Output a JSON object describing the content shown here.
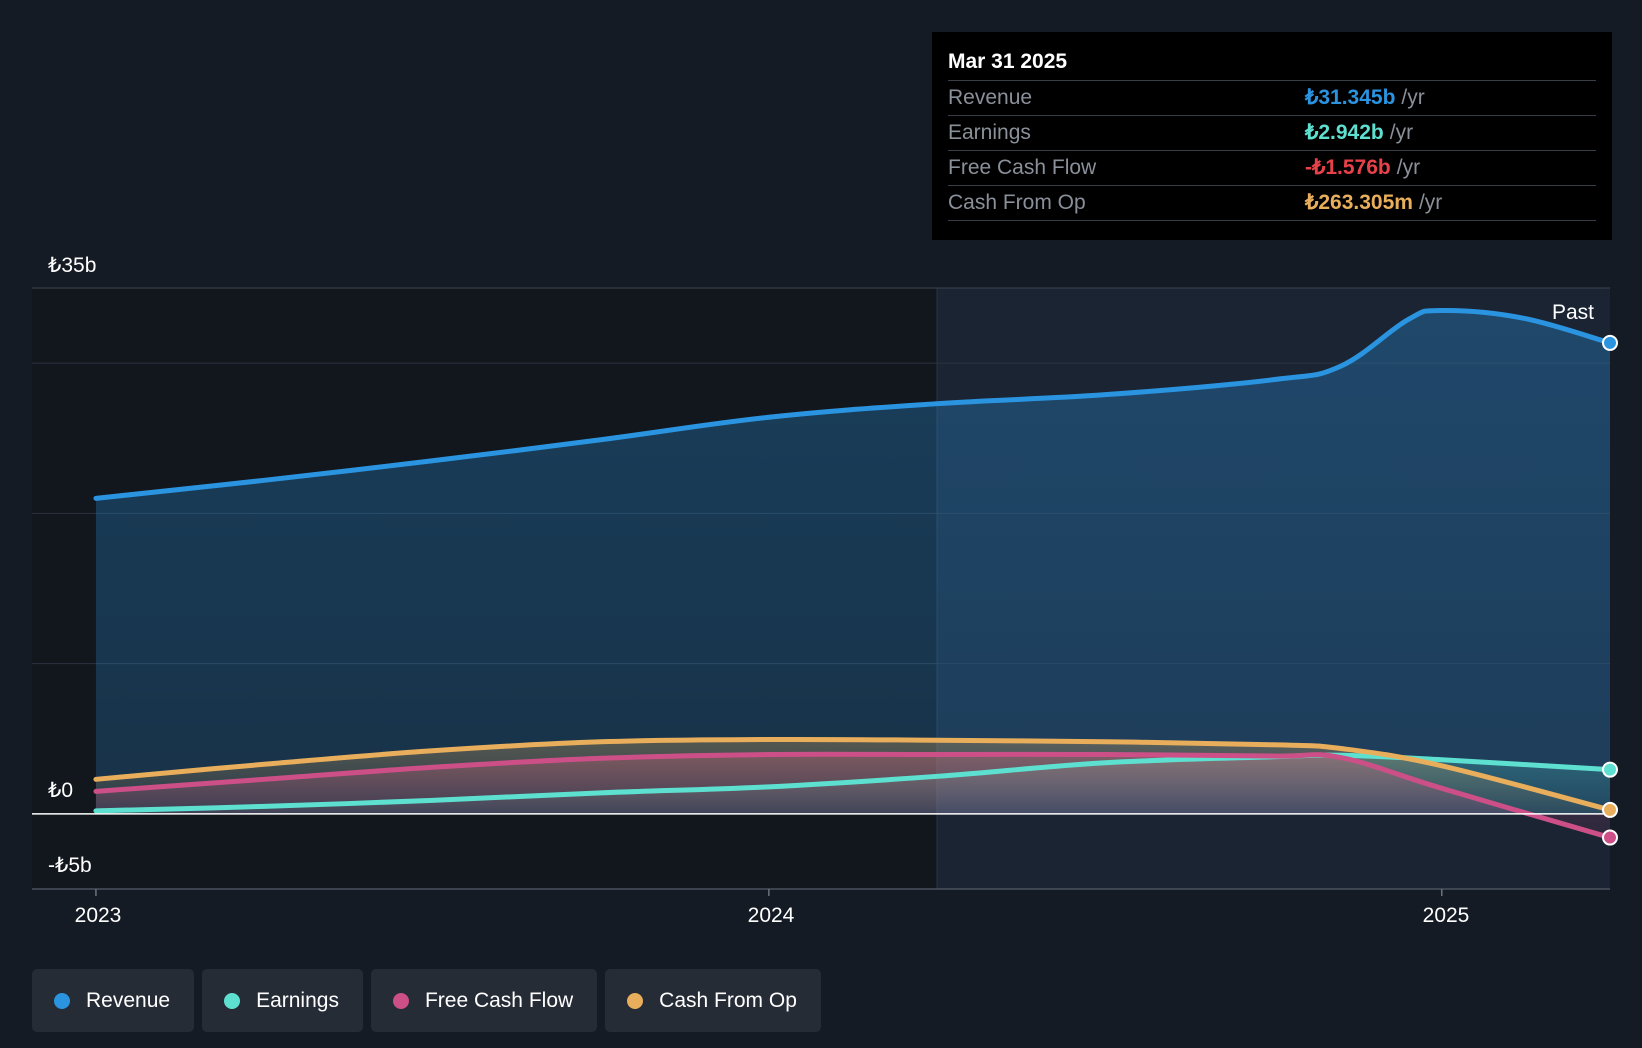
{
  "chart_data": {
    "type": "line",
    "y_tick_labels": [
      "₺35b",
      "₺0",
      "-₺5b"
    ],
    "ylim": [
      -5,
      35
    ],
    "x_tick_labels": [
      "2023",
      "2024",
      "2025"
    ],
    "x_ticks": [
      2023.0,
      2024.0,
      2025.0
    ],
    "xlim": [
      2022.905,
      2025.25
    ],
    "past_label": "Past",
    "past_start": 2024.25,
    "grid": true,
    "area_fill": true,
    "series": [
      {
        "name": "Revenue",
        "color": "#2a94e0",
        "end_marker": true,
        "points": [
          [
            2023.0,
            21.0
          ],
          [
            2023.25,
            22.2
          ],
          [
            2023.5,
            23.5
          ],
          [
            2023.75,
            24.9
          ],
          [
            2024.0,
            26.4
          ],
          [
            2024.25,
            27.3
          ],
          [
            2024.5,
            27.9
          ],
          [
            2024.75,
            28.9
          ],
          [
            2024.85,
            29.8
          ],
          [
            2024.95,
            32.9
          ],
          [
            2025.0,
            33.5
          ],
          [
            2025.12,
            33.0
          ],
          [
            2025.25,
            31.345
          ]
        ]
      },
      {
        "name": "Earnings",
        "color": "#5ee0d0",
        "end_marker": true,
        "points": [
          [
            2023.0,
            0.2
          ],
          [
            2023.25,
            0.5
          ],
          [
            2023.5,
            0.9
          ],
          [
            2023.75,
            1.4
          ],
          [
            2024.0,
            1.8
          ],
          [
            2024.25,
            2.5
          ],
          [
            2024.5,
            3.4
          ],
          [
            2024.75,
            3.8
          ],
          [
            2024.85,
            3.9
          ],
          [
            2025.0,
            3.6
          ],
          [
            2025.25,
            2.942
          ]
        ]
      },
      {
        "name": "Free Cash Flow",
        "color": "#cc4f87",
        "end_marker": true,
        "points": [
          [
            2023.0,
            1.5
          ],
          [
            2023.25,
            2.3
          ],
          [
            2023.5,
            3.1
          ],
          [
            2023.75,
            3.7
          ],
          [
            2024.0,
            3.95
          ],
          [
            2024.25,
            3.95
          ],
          [
            2024.5,
            3.95
          ],
          [
            2024.75,
            3.85
          ],
          [
            2024.85,
            3.75
          ],
          [
            2025.0,
            1.7
          ],
          [
            2025.25,
            -1.576
          ]
        ]
      },
      {
        "name": "Cash From Op",
        "color": "#e8ae5c",
        "end_marker": true,
        "points": [
          [
            2023.0,
            2.3
          ],
          [
            2023.25,
            3.3
          ],
          [
            2023.5,
            4.2
          ],
          [
            2023.75,
            4.8
          ],
          [
            2024.0,
            4.95
          ],
          [
            2024.25,
            4.9
          ],
          [
            2024.5,
            4.8
          ],
          [
            2024.75,
            4.6
          ],
          [
            2024.85,
            4.35
          ],
          [
            2025.0,
            3.2
          ],
          [
            2025.25,
            0.263
          ]
        ]
      }
    ]
  },
  "tooltip": {
    "date": "Mar 31 2025",
    "rows": [
      {
        "label": "Revenue",
        "value": "₺31.345b",
        "unit": "/yr",
        "color": "#2a94e0"
      },
      {
        "label": "Earnings",
        "value": "₺2.942b",
        "unit": "/yr",
        "color": "#5ee0d0"
      },
      {
        "label": "Free Cash Flow",
        "value": "-₺1.576b",
        "unit": "/yr",
        "color": "#e8414a"
      },
      {
        "label": "Cash From Op",
        "value": "₺263.305m",
        "unit": "/yr",
        "color": "#e8ae5c"
      }
    ]
  },
  "legend": [
    {
      "label": "Revenue",
      "color": "#2a94e0"
    },
    {
      "label": "Earnings",
      "color": "#5ee0d0"
    },
    {
      "label": "Free Cash Flow",
      "color": "#cc4f87"
    },
    {
      "label": "Cash From Op",
      "color": "#e8ae5c"
    }
  ]
}
